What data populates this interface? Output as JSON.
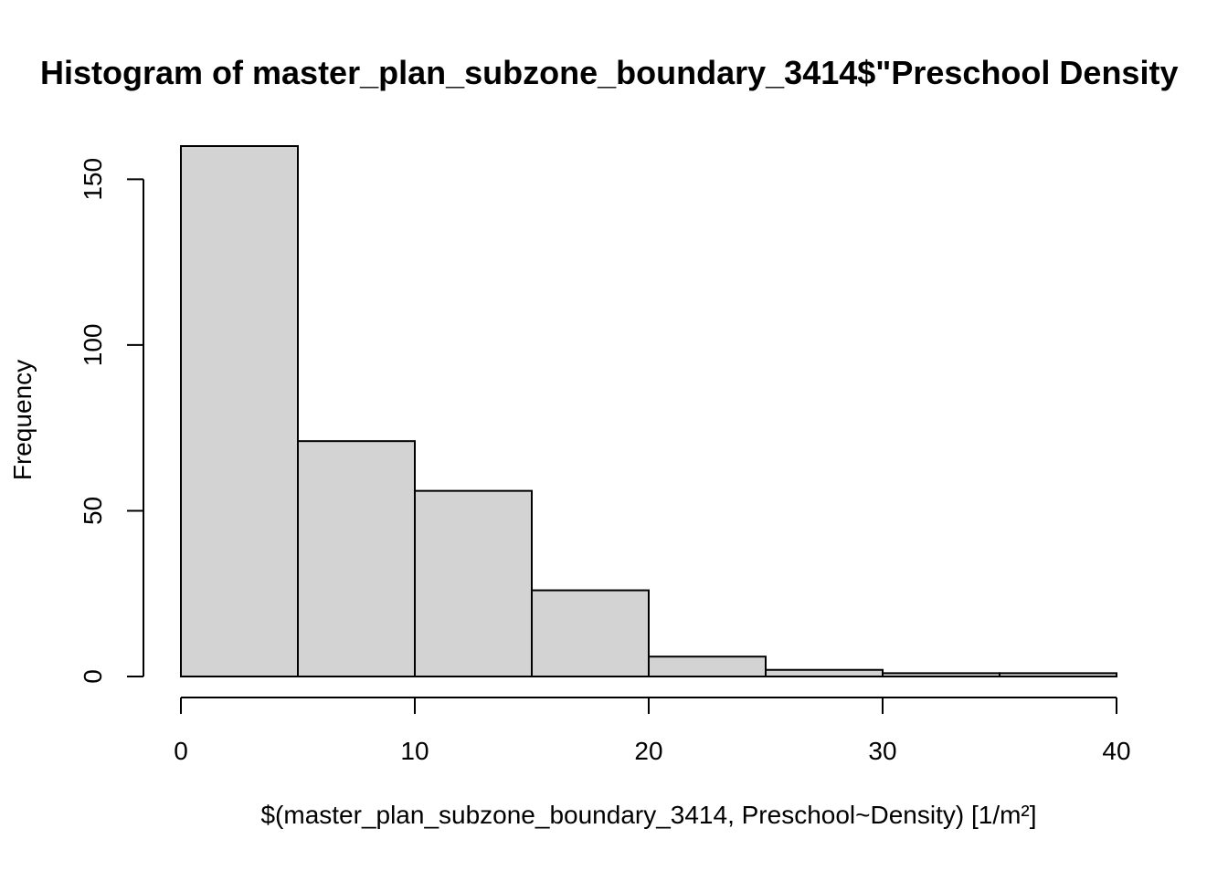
{
  "chart_data": {
    "type": "bar",
    "title": "Histogram of master_plan_subzone_boundary_3414$\"Preschool Density",
    "xlabel": "$(master_plan_subzone_boundary_3414, Preschool~Density) [1/m²]",
    "ylabel": "Frequency",
    "bin_edges": [
      0,
      5,
      10,
      15,
      20,
      25,
      30,
      35,
      40
    ],
    "values": [
      160,
      71,
      56,
      26,
      6,
      2,
      1,
      1
    ],
    "xlim": [
      0,
      40
    ],
    "ylim": [
      0,
      160
    ],
    "x_ticks": [
      0,
      10,
      20,
      30,
      40
    ],
    "y_ticks": [
      0,
      50,
      100,
      150
    ],
    "bar_color": "#d3d3d3",
    "grid": false,
    "legend": "none"
  }
}
